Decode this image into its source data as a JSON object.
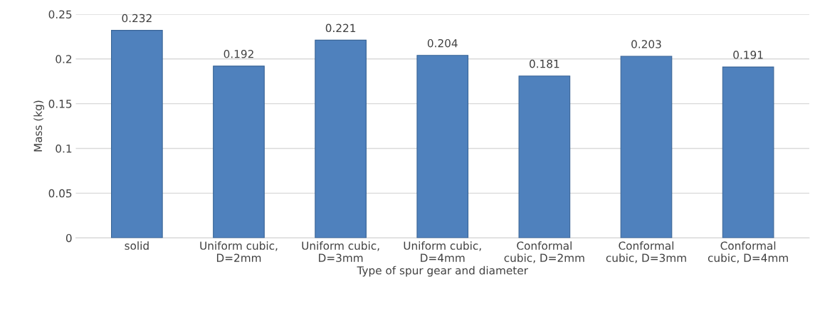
{
  "chart_data": {
    "type": "bar",
    "xlabel": "Type of spur gear and diameter",
    "ylabel": "Mass (kg)",
    "categories": [
      "solid",
      "Uniform cubic,\nD=2mm",
      "Uniform cubic,\nD=3mm",
      "Uniform cubic,\nD=4mm",
      "Conformal\ncubic, D=2mm",
      "Conformal\ncubic, D=3mm",
      "Conformal\ncubic, D=4mm"
    ],
    "values": [
      0.232,
      0.192,
      0.221,
      0.204,
      0.181,
      0.203,
      0.191
    ],
    "color": "#4f81bd",
    "ylim": [
      0,
      0.25
    ],
    "yticks": [
      0,
      {
        "value": 0.05,
        "label": "0.05"
      },
      {
        "value": 0.1,
        "label": "0.1"
      },
      {
        "value": 0.15,
        "label": "0.15"
      },
      {
        "value": 0.2,
        "label": "0.2"
      },
      {
        "value": 0.25,
        "label": "0.25"
      }
    ],
    "grid": "y",
    "data_labels": true
  }
}
